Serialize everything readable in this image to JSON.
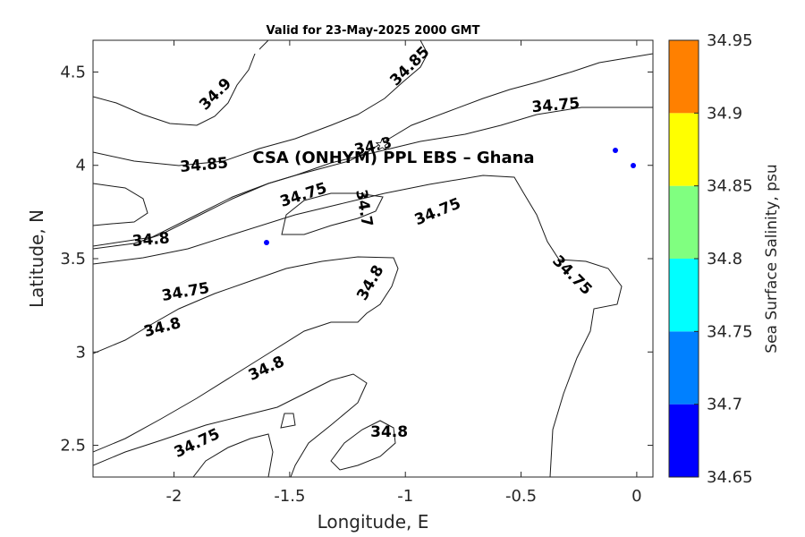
{
  "chart_data": {
    "type": "contour",
    "title": "Valid for 23-May-2025 2000 GMT",
    "xlabel": "Longitude, E",
    "ylabel": "Latitude, N",
    "xlim": [
      -2.35,
      0.07
    ],
    "ylim": [
      2.33,
      4.67
    ],
    "xticks": [
      -2,
      -1.5,
      -1,
      -0.5,
      0
    ],
    "xtick_labels": [
      "-2",
      "-1.5",
      "-1",
      "-0.5",
      "0"
    ],
    "yticks": [
      2.5,
      3,
      3.5,
      4,
      4.5
    ],
    "ytick_labels": [
      "2.5",
      "3",
      "3.5",
      "4",
      "4.5"
    ],
    "colorbar": {
      "label": "Sea Surface Salinity, psu",
      "levels": [
        34.65,
        34.7,
        34.75,
        34.8,
        34.85,
        34.9,
        34.95
      ],
      "tick_labels": [
        "34.65",
        "34.7",
        "34.75",
        "34.8",
        "34.85",
        "34.9",
        "34.95"
      ],
      "colors": [
        "#0000ff",
        "#0080ff",
        "#00ffff",
        "#80ff80",
        "#ffff00",
        "#ff8000"
      ]
    },
    "contour_labels": [
      {
        "text": "34.9",
        "lon": -1.82,
        "lat": 4.38,
        "angle": -45
      },
      {
        "text": "34.85",
        "lon": -0.98,
        "lat": 4.53,
        "angle": -45
      },
      {
        "text": "34.75",
        "lon": -0.35,
        "lat": 4.32,
        "angle": -5
      },
      {
        "text": "34.8",
        "lon": -1.14,
        "lat": 4.1,
        "angle": -12
      },
      {
        "text": "34.85",
        "lon": -1.87,
        "lat": 4.0,
        "angle": -5
      },
      {
        "text": "34.75",
        "lon": -1.44,
        "lat": 3.84,
        "angle": -18
      },
      {
        "text": "34.7",
        "lon": -1.18,
        "lat": 3.77,
        "angle": 80
      },
      {
        "text": "34.75",
        "lon": -0.86,
        "lat": 3.75,
        "angle": -22
      },
      {
        "text": "34.8",
        "lon": -2.1,
        "lat": 3.6,
        "angle": -5
      },
      {
        "text": "34.75",
        "lon": -1.95,
        "lat": 3.32,
        "angle": -10
      },
      {
        "text": "34.8",
        "lon": -1.15,
        "lat": 3.37,
        "angle": -60
      },
      {
        "text": "34.75",
        "lon": -0.28,
        "lat": 3.41,
        "angle": 45
      },
      {
        "text": "34.8",
        "lon": -2.05,
        "lat": 3.13,
        "angle": -15
      },
      {
        "text": "34.8",
        "lon": -1.6,
        "lat": 2.91,
        "angle": -25
      },
      {
        "text": "34.75",
        "lon": -1.9,
        "lat": 2.51,
        "angle": -25
      },
      {
        "text": "34.8",
        "lon": -1.07,
        "lat": 2.57,
        "angle": 0
      }
    ],
    "site": {
      "name": "CSA (ONHYM) PPL EBS  – Ghana",
      "lon": -1.1,
      "lat": 4.11,
      "marker": "white-star"
    },
    "grid": false,
    "legend": "colorbar-right"
  }
}
